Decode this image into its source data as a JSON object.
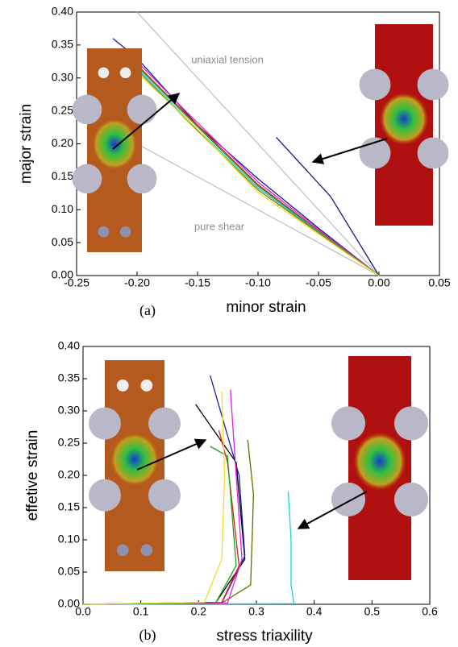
{
  "chart_data": [
    {
      "type": "line",
      "caption": "(a)",
      "x_label": "minor strain",
      "y_label": "major strain",
      "xlim": [
        -0.25,
        0.05
      ],
      "xticks": [
        -0.25,
        {
          "value": -0.2,
          "label": "-0.20"
        },
        -0.15,
        {
          "value": -0.1,
          "label": "-0.10"
        },
        -0.05,
        {
          "value": 0,
          "label": "0.00"
        },
        0.05
      ],
      "ylim": [
        0,
        0.4
      ],
      "yticks": [
        {
          "value": 0,
          "label": "0.00"
        },
        0.05,
        {
          "value": 0.1,
          "label": "0.10"
        },
        0.15,
        {
          "value": 0.2,
          "label": "0.20"
        },
        0.25,
        {
          "value": 0.3,
          "label": "0.30"
        },
        0.35,
        {
          "value": 0.4,
          "label": "0.40"
        }
      ],
      "reference_lines": [
        {
          "label": "uniaxial tension",
          "slope": -2,
          "color": "#b4b4b4"
        },
        {
          "label": "pure shear",
          "slope": -1,
          "color": "#b4b4b4"
        }
      ],
      "series": [
        {
          "color": "#1a1a8c",
          "x": [
            0,
            -0.05,
            -0.1,
            -0.15,
            -0.2,
            -0.22
          ],
          "values": [
            0,
            0.072,
            0.147,
            0.228,
            0.33,
            0.36
          ]
        },
        {
          "color": "#1a1a8c",
          "x": [
            0,
            -0.04,
            -0.085
          ],
          "values": [
            0,
            0.12,
            0.21
          ]
        },
        {
          "color": "#e020e0",
          "x": [
            0,
            -0.05,
            -0.1,
            -0.16,
            -0.2
          ],
          "values": [
            0,
            0.07,
            0.142,
            0.25,
            0.325
          ]
        },
        {
          "color": "#e02020",
          "x": [
            0,
            -0.05,
            -0.1,
            -0.16,
            -0.2
          ],
          "values": [
            0,
            0.068,
            0.138,
            0.246,
            0.32
          ]
        },
        {
          "color": "#20a020",
          "x": [
            0,
            -0.05,
            -0.1,
            -0.16,
            -0.2
          ],
          "values": [
            0,
            0.067,
            0.136,
            0.244,
            0.318
          ]
        },
        {
          "color": "#20c8e0",
          "x": [
            0,
            -0.05,
            -0.1,
            -0.16,
            -0.2
          ],
          "values": [
            0,
            0.066,
            0.133,
            0.24,
            0.315
          ]
        },
        {
          "color": "#8c7a00",
          "x": [
            0,
            -0.05,
            -0.1,
            -0.16,
            -0.2
          ],
          "values": [
            0,
            0.065,
            0.13,
            0.238,
            0.312
          ]
        },
        {
          "color": "#f0e020",
          "x": [
            0,
            -0.05,
            -0.1,
            -0.15,
            -0.2
          ],
          "values": [
            0,
            0.063,
            0.126,
            0.222,
            0.308
          ]
        }
      ]
    },
    {
      "type": "line",
      "caption": "(b)",
      "x_label": "stress triaxility",
      "y_label": "effetive strain",
      "xlim": [
        0,
        0.6
      ],
      "xticks": [
        {
          "value": 0,
          "label": "0.0"
        },
        0.1,
        0.2,
        0.3,
        0.4,
        0.5,
        0.6
      ],
      "ylim": [
        0,
        0.4
      ],
      "yticks": [
        {
          "value": 0,
          "label": "0.00"
        },
        0.05,
        {
          "value": 0.1,
          "label": "0.10"
        },
        0.15,
        {
          "value": 0.2,
          "label": "0.20"
        },
        0.25,
        {
          "value": 0.3,
          "label": "0.30"
        },
        0.35,
        {
          "value": 0.4,
          "label": "0.40"
        }
      ],
      "series": [
        {
          "color": "#20d0e0",
          "x": [
            0,
            0.365,
            0.36,
            0.36,
            0.355
          ],
          "values": [
            0,
            0.001,
            0.03,
            0.1,
            0.175
          ]
        },
        {
          "color": "#6a6a00",
          "x": [
            0,
            0.24,
            0.29,
            0.295,
            0.285
          ],
          "values": [
            0,
            0.002,
            0.03,
            0.17,
            0.255
          ]
        },
        {
          "color": "#000000",
          "x": [
            0,
            0.23,
            0.28,
            0.265,
            0.195
          ],
          "values": [
            0,
            0.003,
            0.07,
            0.22,
            0.31
          ]
        },
        {
          "color": "#1a1ab0",
          "x": [
            0,
            0.24,
            0.28,
            0.27,
            0.22
          ],
          "values": [
            0,
            0.002,
            0.075,
            0.2,
            0.355
          ]
        },
        {
          "color": "#e020e0",
          "x": [
            0,
            0.25,
            0.275,
            0.265,
            0.255
          ],
          "values": [
            0,
            0.002,
            0.07,
            0.2,
            0.333
          ]
        },
        {
          "color": "#e02020",
          "x": [
            0,
            0.24,
            0.27,
            0.25,
            0.235
          ],
          "values": [
            0,
            0.003,
            0.06,
            0.22,
            0.27
          ]
        },
        {
          "color": "#20a020",
          "x": [
            0,
            0.23,
            0.265,
            0.25,
            0.22
          ],
          "values": [
            0,
            0.003,
            0.06,
            0.23,
            0.245
          ]
        },
        {
          "color": "#f0e020",
          "x": [
            0,
            0.21,
            0.24,
            0.245,
            0.24
          ],
          "values": [
            0,
            0.003,
            0.07,
            0.2,
            0.33
          ]
        }
      ]
    }
  ]
}
